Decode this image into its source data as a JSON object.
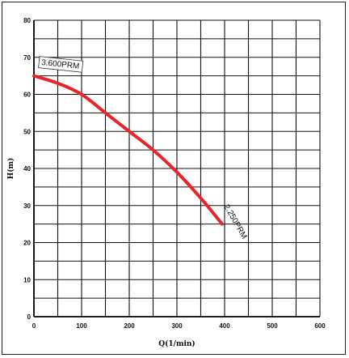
{
  "chart_data": {
    "type": "line",
    "title": "",
    "xlabel": "Q(1/min)",
    "ylabel": "H(m)",
    "xlim": [
      0,
      600
    ],
    "ylim": [
      0,
      80
    ],
    "x_ticks": [
      "0",
      "100",
      "200",
      "300",
      "400",
      "500",
      "600"
    ],
    "y_ticks": [
      "0",
      "10",
      "20",
      "30",
      "40",
      "50",
      "60",
      "70",
      "80"
    ],
    "grid": true,
    "series": [
      {
        "name": "",
        "color": "#e8242a",
        "x": [
          0,
          50,
          100,
          150,
          200,
          250,
          300,
          350,
          395
        ],
        "y": [
          65,
          63,
          60,
          55,
          50,
          45,
          39,
          32,
          25
        ]
      }
    ],
    "annotations": [
      {
        "text": "3.600PRM",
        "x": 0,
        "y": 65
      },
      {
        "text": "2.250PRM",
        "x": 395,
        "y": 25
      }
    ]
  }
}
